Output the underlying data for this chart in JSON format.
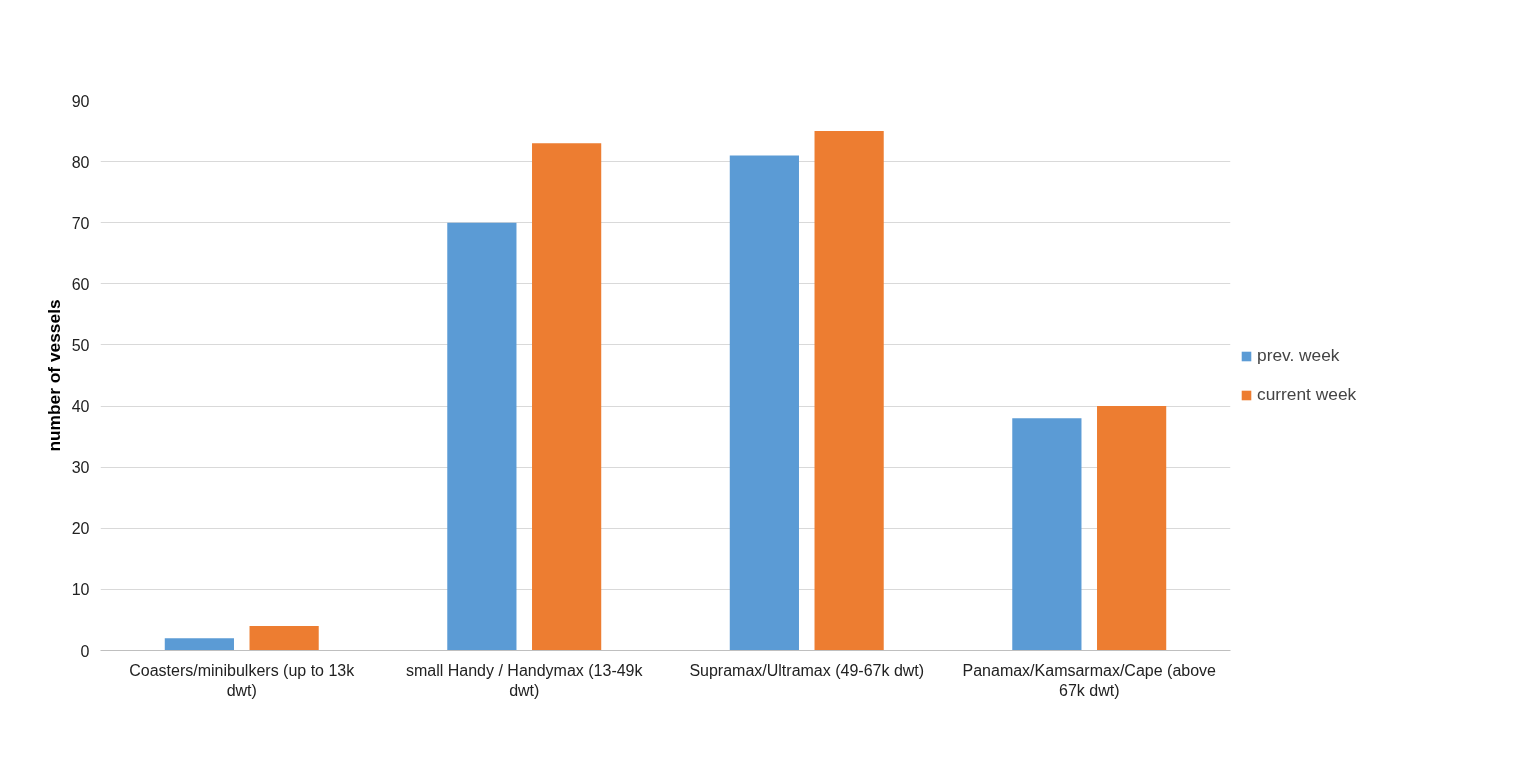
{
  "chart_data": {
    "type": "bar",
    "ylabel": "number of vessels",
    "categories": [
      "Coasters/minibulkers (up to 13k dwt)",
      "small Handy / Handymax (13-49k dwt)",
      "Supramax/Ultramax (49-67k dwt)",
      "Panamax/Kamsarmax/Cape (above 67k dwt)"
    ],
    "series": [
      {
        "name": "prev. week",
        "color": "#5b9bd5",
        "values": [
          2,
          70,
          81,
          38
        ]
      },
      {
        "name": "current week",
        "color": "#ed7d31",
        "values": [
          4,
          83,
          85,
          40
        ]
      }
    ],
    "ylim": [
      0,
      90
    ],
    "yticks": [
      0,
      10,
      20,
      30,
      40,
      50,
      60,
      70,
      80,
      90
    ],
    "grid": "y",
    "legend": "right"
  }
}
